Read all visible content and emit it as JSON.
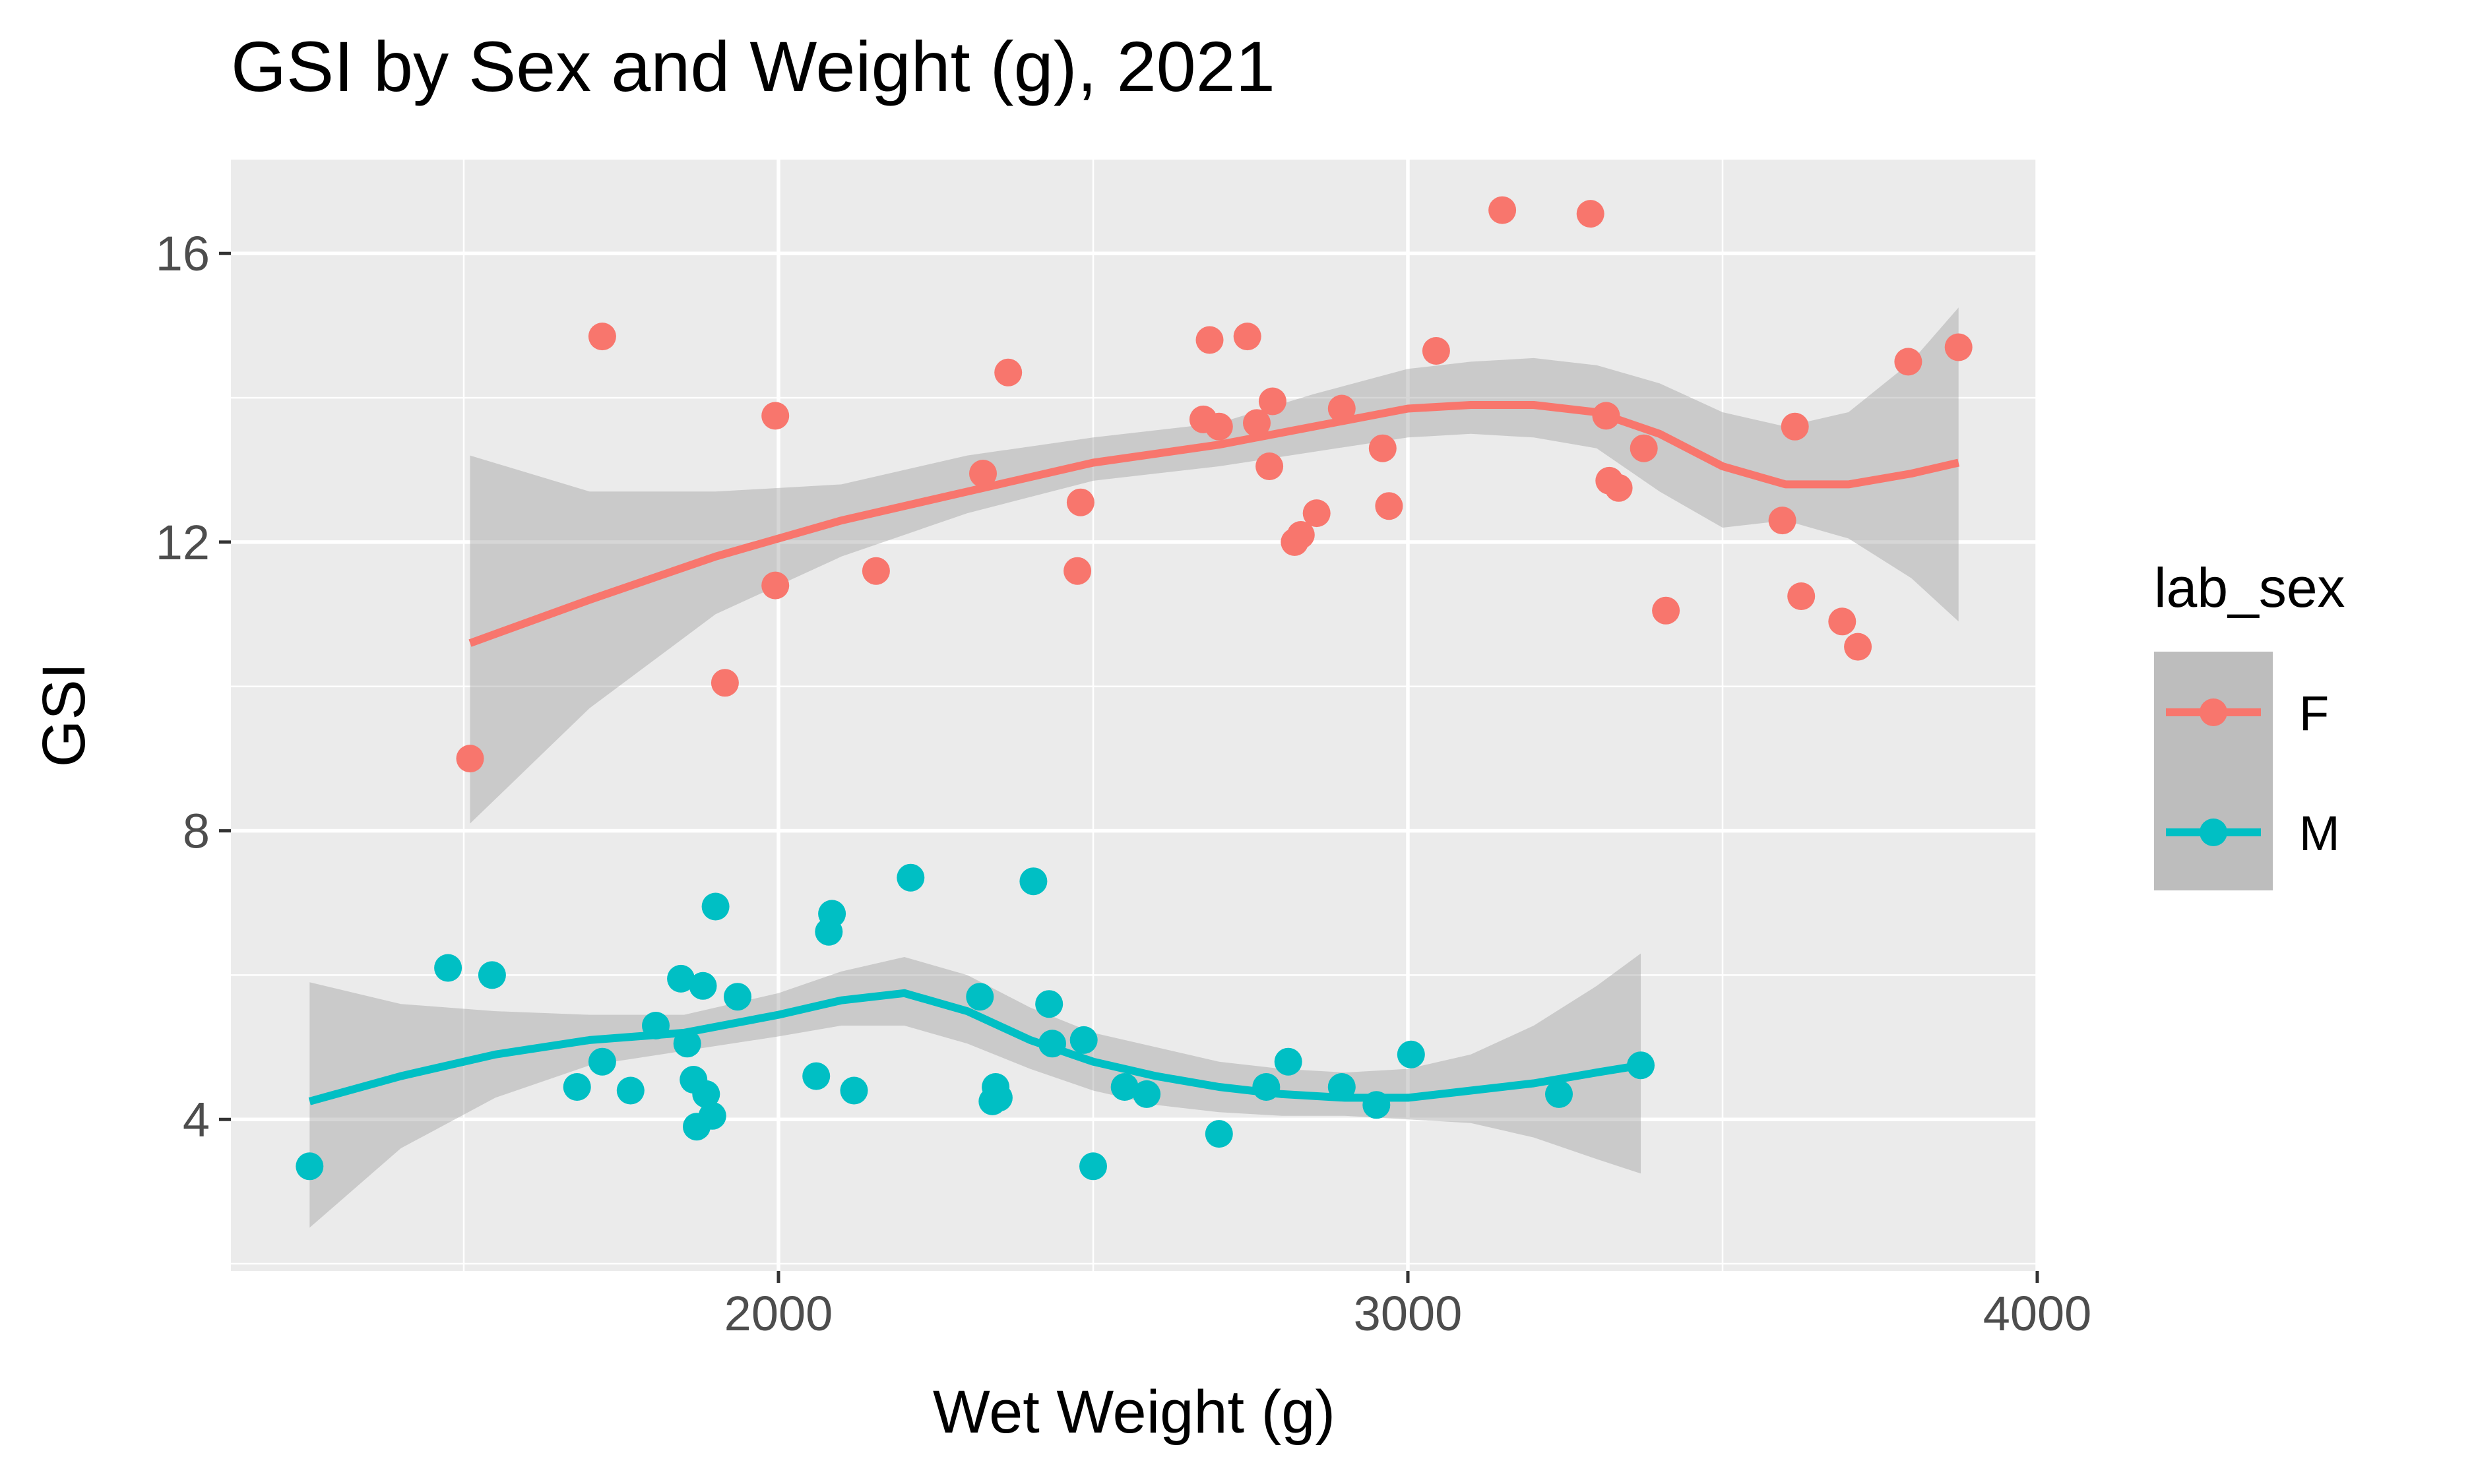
{
  "chart_data": {
    "type": "scatter",
    "title": "GSI by Sex and Weight (g), 2021",
    "xlabel": "Wet Weight (g)",
    "ylabel": "GSI",
    "xlim": [
      1130,
      4000
    ],
    "ylim": [
      1.9,
      17.3
    ],
    "x_ticks": [
      2000,
      3000,
      4000
    ],
    "y_ticks": [
      4,
      8,
      12,
      16
    ],
    "x_tick_labels": [
      "2000",
      "3000",
      "4000"
    ],
    "y_tick_labels": [
      "4",
      "8",
      "12",
      "16"
    ],
    "grid": true,
    "legend": {
      "title": "lab_sex",
      "position": "right"
    },
    "series": [
      {
        "name": "F",
        "color": "#F8766D",
        "points": [
          [
            1510,
            9.0
          ],
          [
            1720,
            14.85
          ],
          [
            1915,
            10.05
          ],
          [
            1995,
            11.4
          ],
          [
            1995,
            13.75
          ],
          [
            2155,
            11.6
          ],
          [
            2325,
            12.95
          ],
          [
            2365,
            14.35
          ],
          [
            2475,
            11.6
          ],
          [
            2480,
            12.55
          ],
          [
            2675,
            13.7
          ],
          [
            2685,
            14.8
          ],
          [
            2700,
            13.6
          ],
          [
            2745,
            14.85
          ],
          [
            2760,
            13.65
          ],
          [
            2780,
            13.05
          ],
          [
            2785,
            13.95
          ],
          [
            2820,
            12.0
          ],
          [
            2830,
            12.1
          ],
          [
            2855,
            12.4
          ],
          [
            2895,
            13.85
          ],
          [
            2960,
            13.3
          ],
          [
            2970,
            12.5
          ],
          [
            3045,
            14.65
          ],
          [
            3150,
            16.6
          ],
          [
            3290,
            16.55
          ],
          [
            3315,
            13.75
          ],
          [
            3320,
            12.85
          ],
          [
            3335,
            12.75
          ],
          [
            3375,
            13.3
          ],
          [
            3410,
            11.05
          ],
          [
            3595,
            12.3
          ],
          [
            3615,
            13.6
          ],
          [
            3625,
            11.25
          ],
          [
            3690,
            10.9
          ],
          [
            3715,
            10.55
          ],
          [
            3795,
            14.5
          ],
          [
            3875,
            14.7
          ]
        ],
        "smooth": {
          "x": [
            1510,
            1700,
            1900,
            2100,
            2300,
            2500,
            2700,
            2850,
            3000,
            3100,
            3200,
            3300,
            3400,
            3500,
            3600,
            3700,
            3800,
            3875
          ],
          "y": [
            10.6,
            11.2,
            11.8,
            12.3,
            12.7,
            13.1,
            13.35,
            13.6,
            13.85,
            13.9,
            13.9,
            13.8,
            13.5,
            13.05,
            12.8,
            12.8,
            12.95,
            13.1
          ],
          "ci_lower": [
            8.1,
            9.7,
            11.0,
            11.8,
            12.4,
            12.85,
            13.05,
            13.25,
            13.45,
            13.5,
            13.45,
            13.3,
            12.7,
            12.2,
            12.3,
            12.05,
            11.5,
            10.9
          ],
          "ci_upper": [
            13.2,
            12.7,
            12.7,
            12.8,
            13.2,
            13.45,
            13.65,
            14.05,
            14.4,
            14.5,
            14.55,
            14.45,
            14.2,
            13.8,
            13.6,
            13.8,
            14.5,
            15.25
          ]
        }
      },
      {
        "name": "M",
        "color": "#00BFC4",
        "points": [
          [
            1255,
            3.35
          ],
          [
            1475,
            6.1
          ],
          [
            1545,
            6.0
          ],
          [
            1680,
            4.45
          ],
          [
            1720,
            4.8
          ],
          [
            1765,
            4.4
          ],
          [
            1805,
            5.3
          ],
          [
            1845,
            5.95
          ],
          [
            1855,
            5.05
          ],
          [
            1865,
            4.55
          ],
          [
            1870,
            3.9
          ],
          [
            1880,
            5.85
          ],
          [
            1885,
            4.35
          ],
          [
            1895,
            4.05
          ],
          [
            1900,
            6.95
          ],
          [
            1935,
            5.7
          ],
          [
            2060,
            4.6
          ],
          [
            2080,
            6.6
          ],
          [
            2085,
            6.85
          ],
          [
            2120,
            4.4
          ],
          [
            2210,
            7.35
          ],
          [
            2320,
            5.7
          ],
          [
            2340,
            4.25
          ],
          [
            2345,
            4.45
          ],
          [
            2350,
            4.3
          ],
          [
            2405,
            7.3
          ],
          [
            2430,
            5.6
          ],
          [
            2435,
            5.05
          ],
          [
            2485,
            5.1
          ],
          [
            2500,
            3.35
          ],
          [
            2550,
            4.45
          ],
          [
            2585,
            4.35
          ],
          [
            2700,
            3.8
          ],
          [
            2775,
            4.45
          ],
          [
            2810,
            4.8
          ],
          [
            2895,
            4.45
          ],
          [
            2950,
            4.2
          ],
          [
            3005,
            4.9
          ],
          [
            3240,
            4.35
          ],
          [
            3370,
            4.75
          ]
        ],
        "smooth": {
          "x": [
            1255,
            1400,
            1550,
            1700,
            1850,
            2000,
            2100,
            2200,
            2300,
            2400,
            2500,
            2600,
            2700,
            2800,
            2900,
            3000,
            3100,
            3200,
            3300,
            3370
          ],
          "y": [
            4.25,
            4.6,
            4.9,
            5.1,
            5.2,
            5.45,
            5.65,
            5.75,
            5.5,
            5.1,
            4.8,
            4.6,
            4.45,
            4.35,
            4.3,
            4.3,
            4.4,
            4.5,
            4.65,
            4.75
          ],
          "ci_lower": [
            2.5,
            3.6,
            4.3,
            4.75,
            4.95,
            5.15,
            5.3,
            5.3,
            5.05,
            4.7,
            4.4,
            4.2,
            4.1,
            4.05,
            4.05,
            4.0,
            3.95,
            3.75,
            3.45,
            3.25
          ],
          "ci_upper": [
            5.9,
            5.6,
            5.5,
            5.45,
            5.45,
            5.75,
            6.05,
            6.25,
            6.0,
            5.55,
            5.2,
            5.0,
            4.8,
            4.7,
            4.65,
            4.7,
            4.9,
            5.3,
            5.85,
            6.3
          ]
        }
      }
    ]
  }
}
